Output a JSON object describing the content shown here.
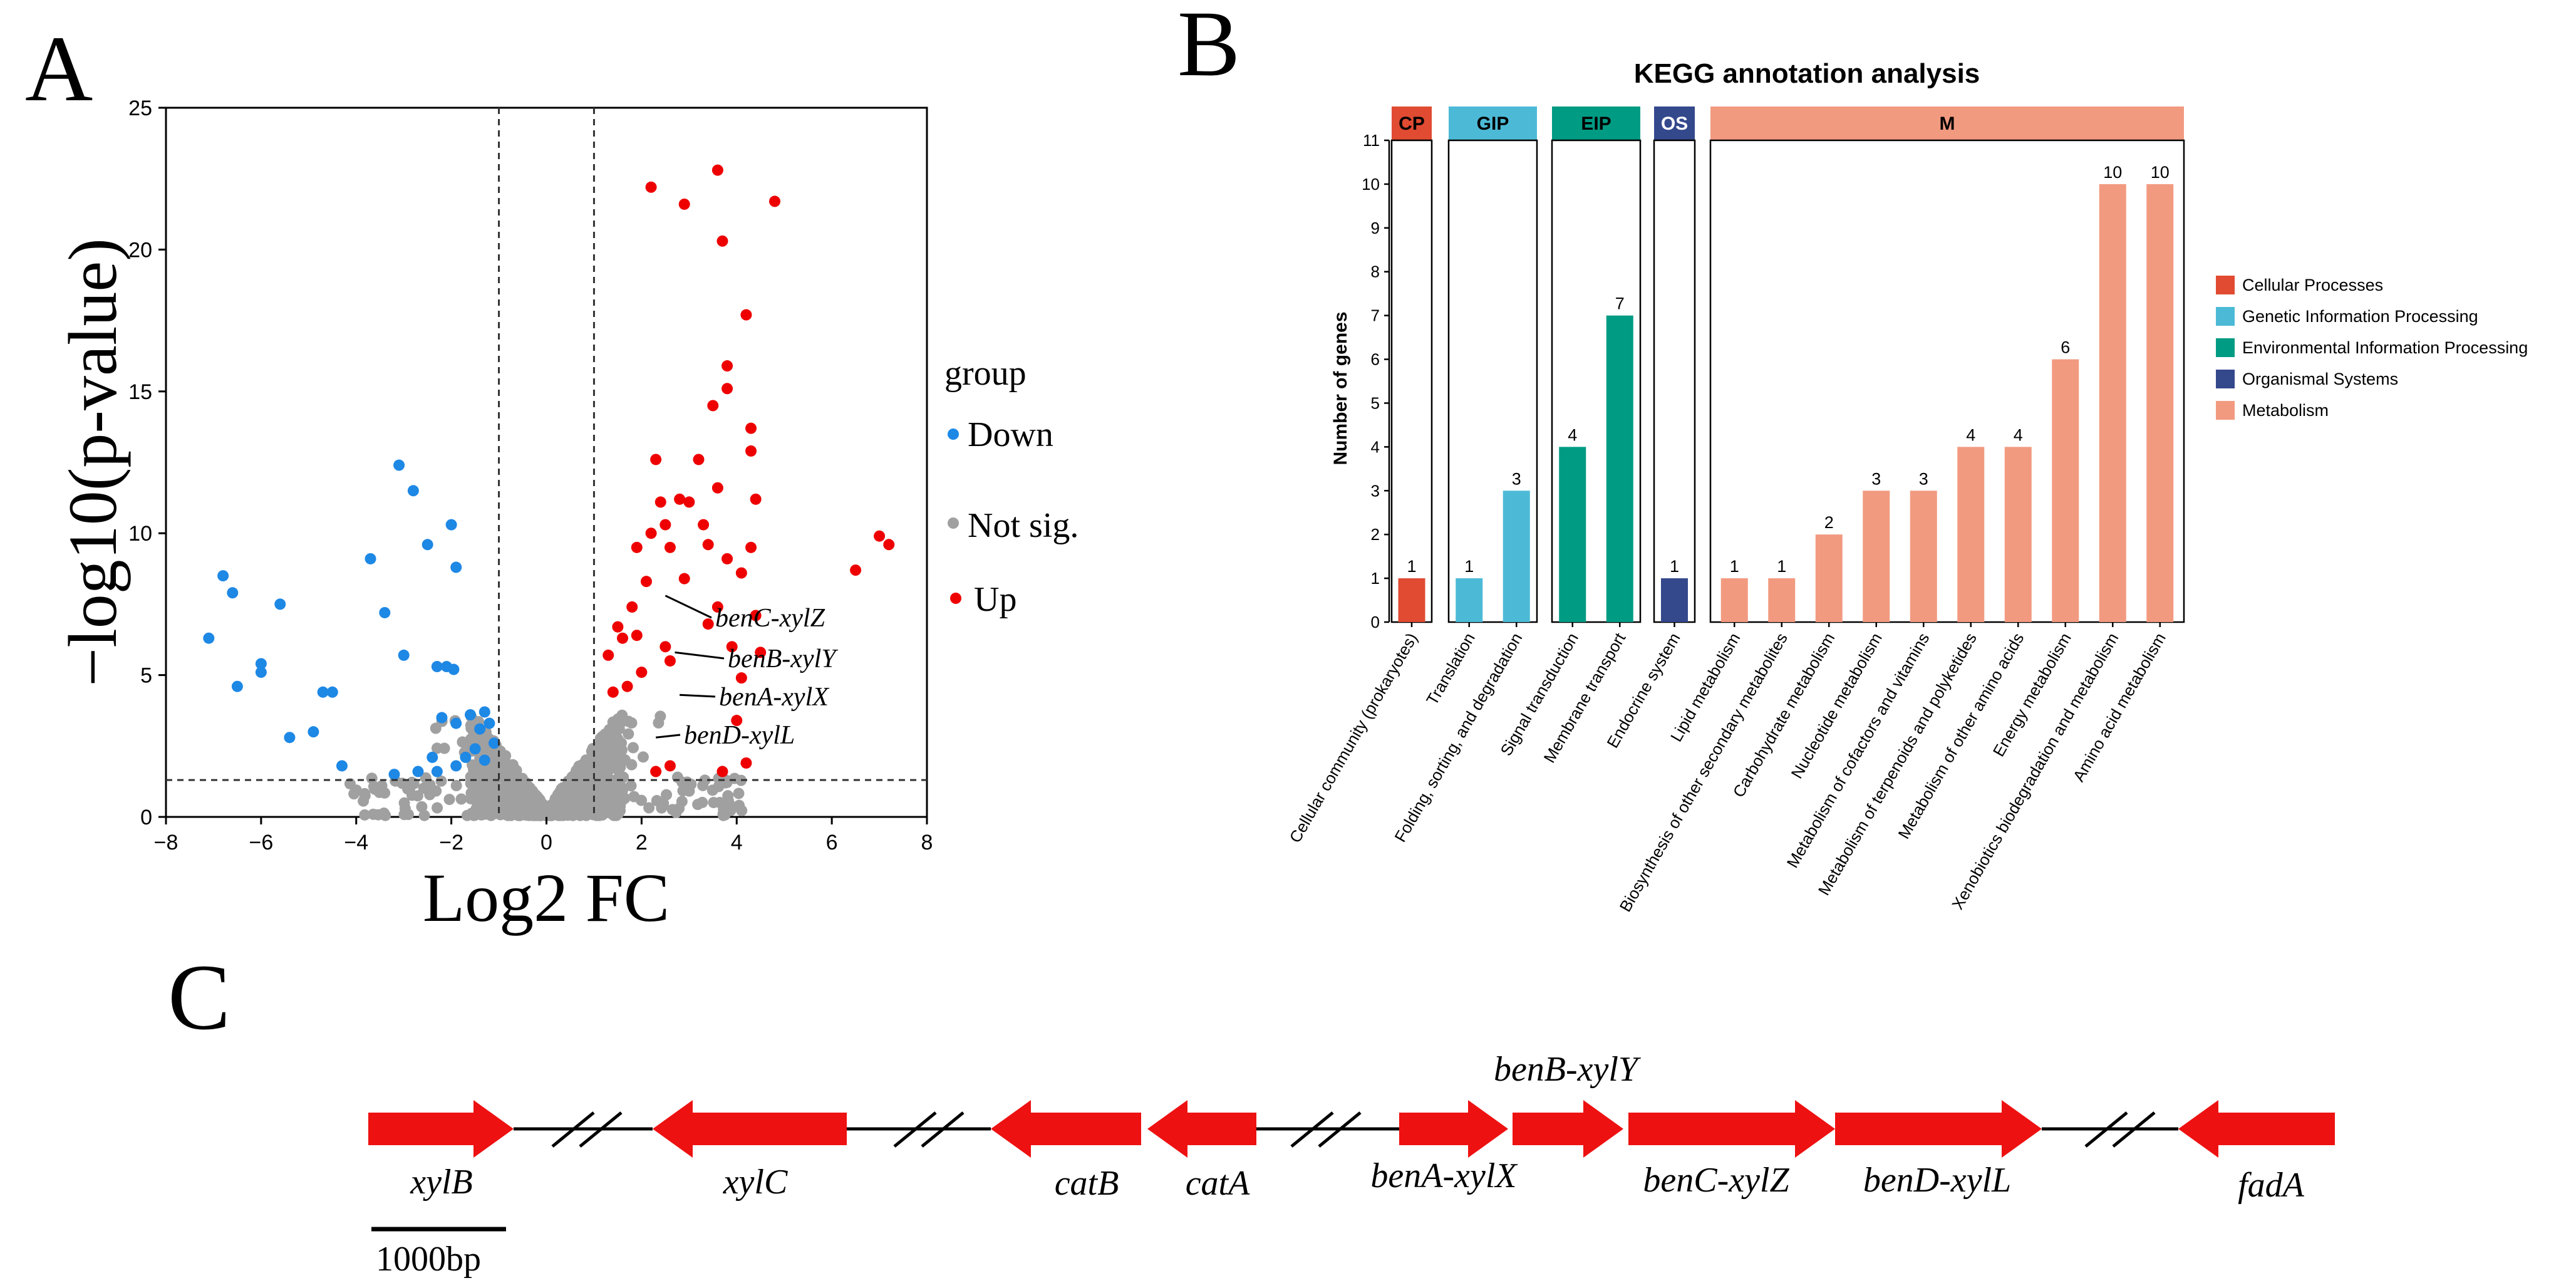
{
  "panels": {
    "a_label": "A",
    "b_label": "B",
    "c_label": "C"
  },
  "volcano": {
    "xlabel": "Log2 FC",
    "ylabel": "−log10(p-value)",
    "xlim": [
      -8,
      8
    ],
    "ylim": [
      0,
      25
    ],
    "xticks": [
      -8,
      -6,
      -4,
      -2,
      0,
      2,
      4,
      6,
      8
    ],
    "yticks": [
      0,
      5,
      10,
      15,
      20,
      25
    ],
    "vlines": [
      -1,
      1
    ],
    "hline": 1.3,
    "legend": {
      "title": "group",
      "items": [
        {
          "label": "Down",
          "color": "#1e88e5"
        },
        {
          "label": "Not sig.",
          "color": "#a0a0a0"
        },
        {
          "label": "Up",
          "color": "#ee0000"
        }
      ]
    },
    "annotations": [
      {
        "label": "benC-xylZ",
        "x": 2.5,
        "y": 7.8
      },
      {
        "label": "benB-xylY",
        "x": 2.7,
        "y": 5.8
      },
      {
        "label": "benA-xylX",
        "x": 2.8,
        "y": 4.3
      },
      {
        "label": "benD-xylL",
        "x": 2.3,
        "y": 2.8
      }
    ],
    "colors": {
      "down": "#1e88e5",
      "up": "#ee0000",
      "ns": "#a0a0a0"
    }
  },
  "chart_data": [
    {
      "type": "scatter",
      "title": "",
      "xlabel": "Log2 FC",
      "ylabel": "−log10(p-value)",
      "xlim": [
        -8,
        8
      ],
      "ylim": [
        0,
        25
      ],
      "series": [
        {
          "name": "Down",
          "points": [
            [
              -7.1,
              6.3
            ],
            [
              -6.8,
              8.5
            ],
            [
              -6.6,
              7.9
            ],
            [
              -6.5,
              4.6
            ],
            [
              -6.0,
              5.4
            ],
            [
              -6.0,
              5.1
            ],
            [
              -5.6,
              7.5
            ],
            [
              -5.4,
              2.8
            ],
            [
              -4.9,
              3.0
            ],
            [
              -4.7,
              4.4
            ],
            [
              -4.5,
              4.4
            ],
            [
              -4.3,
              1.8
            ],
            [
              -3.7,
              9.1
            ],
            [
              -3.4,
              7.2
            ],
            [
              -3.2,
              1.5
            ],
            [
              -3.1,
              12.4
            ],
            [
              -3.0,
              5.7
            ],
            [
              -2.8,
              11.5
            ],
            [
              -2.7,
              1.6
            ],
            [
              -2.5,
              9.6
            ],
            [
              -2.4,
              2.1
            ],
            [
              -2.3,
              5.3
            ],
            [
              -2.1,
              5.3
            ],
            [
              -2.0,
              10.3
            ],
            [
              -1.9,
              8.8
            ],
            [
              -1.95,
              5.2
            ],
            [
              -2.2,
              3.5
            ],
            [
              -1.9,
              3.3
            ],
            [
              -1.6,
              3.6
            ],
            [
              -1.4,
              3.1
            ],
            [
              -1.3,
              3.7
            ],
            [
              -1.2,
              3.3
            ],
            [
              -1.5,
              2.4
            ],
            [
              -1.7,
              2.1
            ],
            [
              -1.3,
              2.0
            ],
            [
              -1.1,
              2.6
            ],
            [
              -1.9,
              1.8
            ],
            [
              -2.3,
              1.6
            ]
          ]
        },
        {
          "name": "Up",
          "points": [
            [
              2.2,
              22.2
            ],
            [
              2.9,
              21.6
            ],
            [
              3.6,
              22.8
            ],
            [
              3.7,
              20.3
            ],
            [
              4.8,
              21.7
            ],
            [
              4.2,
              17.7
            ],
            [
              3.8,
              15.9
            ],
            [
              3.8,
              15.1
            ],
            [
              3.5,
              14.5
            ],
            [
              4.3,
              13.7
            ],
            [
              4.3,
              12.9
            ],
            [
              2.3,
              12.6
            ],
            [
              3.2,
              12.6
            ],
            [
              3.6,
              11.6
            ],
            [
              4.4,
              11.2
            ],
            [
              2.8,
              11.2
            ],
            [
              2.4,
              11.1
            ],
            [
              3.0,
              11.1
            ],
            [
              3.3,
              10.3
            ],
            [
              2.5,
              10.3
            ],
            [
              2.2,
              10.0
            ],
            [
              1.9,
              9.5
            ],
            [
              4.3,
              9.5
            ],
            [
              7.0,
              9.9
            ],
            [
              7.2,
              9.6
            ],
            [
              6.5,
              8.7
            ],
            [
              2.6,
              9.5
            ],
            [
              3.4,
              9.6
            ],
            [
              3.8,
              9.1
            ],
            [
              4.1,
              8.6
            ],
            [
              2.9,
              8.4
            ],
            [
              2.1,
              8.3
            ],
            [
              1.8,
              7.4
            ],
            [
              1.5,
              6.7
            ],
            [
              1.6,
              6.3
            ],
            [
              1.9,
              6.4
            ],
            [
              2.5,
              6.0
            ],
            [
              2.6,
              5.5
            ],
            [
              3.4,
              6.8
            ],
            [
              3.6,
              7.4
            ],
            [
              4.4,
              7.1
            ],
            [
              4.5,
              5.8
            ],
            [
              3.9,
              6.0
            ],
            [
              4.1,
              4.9
            ],
            [
              4.0,
              3.4
            ],
            [
              4.2,
              1.9
            ],
            [
              3.7,
              1.6
            ],
            [
              2.6,
              1.8
            ],
            [
              2.3,
              1.6
            ],
            [
              1.3,
              5.7
            ],
            [
              1.4,
              4.4
            ],
            [
              2.0,
              5.1
            ],
            [
              1.7,
              4.6
            ]
          ]
        }
      ]
    },
    {
      "type": "bar",
      "title": "KEGG annotation analysis",
      "xlabel": "",
      "ylabel": "Number of genes",
      "ylim": [
        0,
        11
      ],
      "yticks": [
        0,
        1,
        2,
        3,
        4,
        5,
        6,
        7,
        8,
        9,
        10,
        11
      ],
      "groups": [
        {
          "code": "CP",
          "name": "Cellular Processes",
          "color": "#e04b32",
          "categories": [
            "Cellular community (prokaryotes)"
          ],
          "values": [
            1
          ]
        },
        {
          "code": "GIP",
          "name": "Genetic Information Processing",
          "color": "#4cbad7",
          "categories": [
            "Translation",
            "Folding, sorting, and degradation"
          ],
          "values": [
            1,
            3
          ]
        },
        {
          "code": "EIP",
          "name": "Environmental Information Processing",
          "color": "#009b83",
          "categories": [
            "Signal transduction",
            "Membrane transport"
          ],
          "values": [
            4,
            7
          ]
        },
        {
          "code": "OS",
          "name": "Organismal Systems",
          "color": "#34488c",
          "categories": [
            "Endocrine system"
          ],
          "values": [
            1
          ]
        },
        {
          "code": "M",
          "name": "Metabolism",
          "color": "#f29a80",
          "categories": [
            "Lipid metabolism",
            "Biosynthesis of other secondary metabolites",
            "Carbohydrate metabolism",
            "Nucleotide metabolism",
            "Metabolism of cofactors and vitamins",
            "Metabolism of terpenoids and polyketides",
            "Metabolism of other amino acids",
            "Energy metabolism",
            "Xenobiotics biodegradation and metabolism",
            "Amino acid metabolism"
          ],
          "values": [
            1,
            1,
            2,
            3,
            3,
            4,
            4,
            6,
            10,
            10
          ]
        }
      ],
      "legend": [
        "Cellular Processes",
        "Genetic Information Processing",
        "Environmental Information Processing",
        "Organismal Systems",
        "Metabolism"
      ]
    }
  ],
  "gene_map": {
    "arrow_color": "#ee1111",
    "scale_label": "1000bp",
    "genes": [
      {
        "name": "xylB",
        "direction": "right"
      },
      {
        "name": "xylC",
        "direction": "left"
      },
      {
        "name": "catB",
        "direction": "left"
      },
      {
        "name": "catA",
        "direction": "left"
      },
      {
        "name": "benA-xylX",
        "direction": "right"
      },
      {
        "name": "benB-xylY",
        "direction": "right"
      },
      {
        "name": "benC-xylZ",
        "direction": "right"
      },
      {
        "name": "benD-xylL",
        "direction": "right"
      },
      {
        "name": "fadA",
        "direction": "left"
      }
    ]
  }
}
